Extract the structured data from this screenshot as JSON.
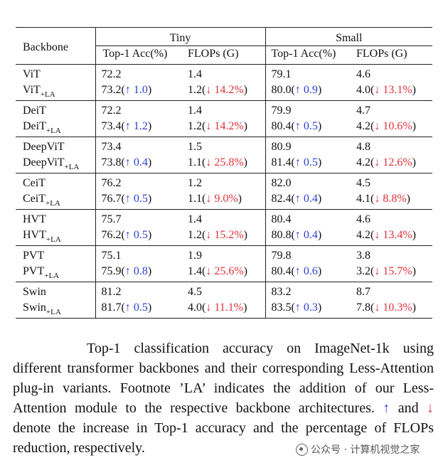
{
  "table": {
    "corner_label": "Backbone",
    "groups": [
      "Tiny",
      "Small"
    ],
    "metric_labels": [
      "Top-1 Acc(%)",
      "FLOPs (G)",
      "Top-1 Acc(%)",
      "FLOPs (G)"
    ],
    "rows": [
      {
        "name": "ViT",
        "tiny_acc": "72.2",
        "tiny_flops": "1.4",
        "small_acc": "79.1",
        "small_flops": "4.6",
        "la_sub": "+LA",
        "la_tiny_acc": "73.2",
        "la_tiny_acc_delta": "↑ 1.0",
        "la_tiny_flops": "1.2",
        "la_tiny_flops_delta": "↓ 14.2%",
        "la_small_acc": "80.0",
        "la_small_acc_delta": "↑ 0.9",
        "la_small_flops": "4.0",
        "la_small_flops_delta": "↓ 13.1%"
      },
      {
        "name": "DeiT",
        "tiny_acc": "72.2",
        "tiny_flops": "1.4",
        "small_acc": "79.9",
        "small_flops": "4.7",
        "la_sub": "+LA",
        "la_tiny_acc": "73.4",
        "la_tiny_acc_delta": "↑ 1.2",
        "la_tiny_flops": "1.2",
        "la_tiny_flops_delta": "↓ 14.2%",
        "la_small_acc": "80.4",
        "la_small_acc_delta": "↑ 0.5",
        "la_small_flops": "4.2",
        "la_small_flops_delta": "↓ 10.6%"
      },
      {
        "name": "DeepViT",
        "tiny_acc": "73.4",
        "tiny_flops": "1.5",
        "small_acc": "80.9",
        "small_flops": "4.8",
        "la_sub": "+LA",
        "la_tiny_acc": "73.8",
        "la_tiny_acc_delta": "↑ 0.4",
        "la_tiny_flops": "1.1",
        "la_tiny_flops_delta": "↓ 25.8%",
        "la_small_acc": "81.4",
        "la_small_acc_delta": "↑ 0.5",
        "la_small_flops": "4.2",
        "la_small_flops_delta": "↓ 12.6%"
      },
      {
        "name": "CeiT",
        "tiny_acc": "76.2",
        "tiny_flops": "1.2",
        "small_acc": "82.0",
        "small_flops": "4.5",
        "la_sub": "+LA",
        "la_tiny_acc": "76.7",
        "la_tiny_acc_delta": "↑ 0.5",
        "la_tiny_flops": "1.1",
        "la_tiny_flops_delta": "↓ 9.0%",
        "la_small_acc": "82.4",
        "la_small_acc_delta": "↑ 0.4",
        "la_small_flops": "4.1",
        "la_small_flops_delta": "↓ 8.8%"
      },
      {
        "name": "HVT",
        "tiny_acc": "75.7",
        "tiny_flops": "1.4",
        "small_acc": "80.4",
        "small_flops": "4.6",
        "la_sub": "+LA",
        "la_tiny_acc": "76.2",
        "la_tiny_acc_delta": "↑ 0.5",
        "la_tiny_flops": "1.2",
        "la_tiny_flops_delta": "↓ 15.2%",
        "la_small_acc": "80.8",
        "la_small_acc_delta": "↑ 0.4",
        "la_small_flops": "4.2",
        "la_small_flops_delta": "↓ 13.4%"
      },
      {
        "name": "PVT",
        "tiny_acc": "75.1",
        "tiny_flops": "1.9",
        "small_acc": "79.8",
        "small_flops": "3.8",
        "la_sub": "+LA",
        "la_tiny_acc": "75.9",
        "la_tiny_acc_delta": "↑ 0.8",
        "la_tiny_flops": "1.4",
        "la_tiny_flops_delta": "↓ 25.6%",
        "la_small_acc": "80.4",
        "la_small_acc_delta": "↑ 0.6",
        "la_small_flops": "3.2",
        "la_small_flops_delta": "↓ 15.7%"
      },
      {
        "name": "Swin",
        "tiny_acc": "81.2",
        "tiny_flops": "4.5",
        "small_acc": "83.2",
        "small_flops": "8.7",
        "la_sub": "+LA",
        "la_tiny_acc": "81.7",
        "la_tiny_acc_delta": "↑ 0.5",
        "la_tiny_flops": "4.0",
        "la_tiny_flops_delta": "↓ 11.1%",
        "la_small_acc": "83.5",
        "la_small_acc_delta": "↑ 0.3",
        "la_small_flops": "7.8",
        "la_small_flops_delta": "↓ 10.3%"
      }
    ]
  },
  "caption": {
    "part1": "Top-1 classification accuracy on ImageNet-1k using different transformer backbones and their corresponding Less-Attention plug-in variants. Footnote ’LA’ indicates the addition of our Less-Attention module to the respective backbone architectures.",
    "up_arrow": "↑",
    "and": "and",
    "down_arrow": "↓",
    "part2": "denote the increase in Top-1 accuracy and the percentage of FLOPs reduction, respectively."
  },
  "watermark": {
    "text": "公众号 · 计算机视觉之家"
  },
  "colors": {
    "increase": "#2b3fd6",
    "decrease": "#e0313a"
  }
}
